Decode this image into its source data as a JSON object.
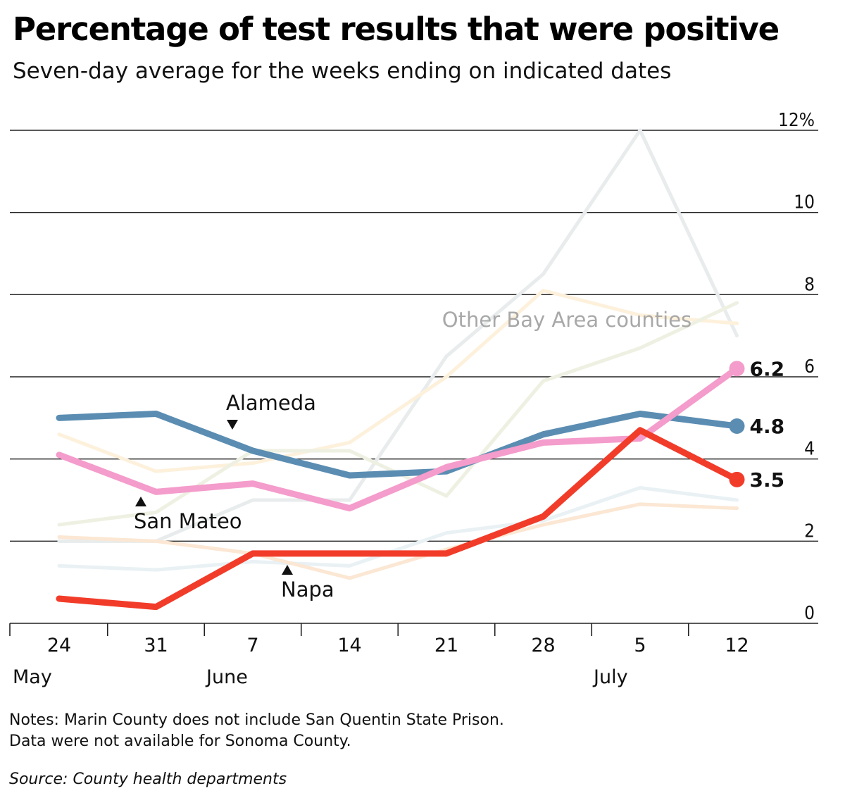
{
  "title": "Percentage of test results that were positive",
  "subtitle": "Seven-day average for the weeks ending on indicated dates",
  "notes": [
    "Notes: Marin County does not include San Quentin State Prison.",
    "Data were not available for Sonoma County."
  ],
  "source": "Source: County health departments",
  "chart_data": {
    "type": "line",
    "x": [
      "May 24",
      "May 31",
      "June 7",
      "June 14",
      "June 21",
      "June 28",
      "July 5",
      "July 12"
    ],
    "x_tick_labels": [
      "24",
      "31",
      "7",
      "14",
      "21",
      "28",
      "5",
      "12"
    ],
    "month_labels": [
      {
        "label": "May",
        "at": "May 24"
      },
      {
        "label": "June",
        "at": "June 7"
      },
      {
        "label": "July",
        "at": "July 5"
      }
    ],
    "ylim": [
      0,
      12
    ],
    "y_ticks": [
      0,
      2,
      4,
      6,
      8,
      10,
      12
    ],
    "y_tick_labels": [
      "0",
      "2",
      "4",
      "6",
      "8",
      "10",
      "12%"
    ],
    "grid": "horizontal",
    "background_series_label": "Other Bay Area counties",
    "background_series": [
      {
        "color": "#e8ecec",
        "values": [
          2.0,
          2.0,
          3.0,
          3.0,
          6.5,
          8.5,
          12.0,
          7.0
        ]
      },
      {
        "color": "#fdf1dc",
        "values": [
          4.6,
          3.7,
          3.9,
          4.4,
          6.0,
          8.1,
          7.5,
          7.3
        ]
      },
      {
        "color": "#eef0e2",
        "values": [
          2.4,
          2.7,
          4.2,
          4.2,
          3.1,
          5.9,
          6.7,
          7.8
        ]
      },
      {
        "color": "#e9f1f4",
        "values": [
          1.4,
          1.3,
          1.5,
          1.4,
          2.2,
          2.5,
          3.3,
          3.0
        ]
      },
      {
        "color": "#fbe7d3",
        "values": [
          2.1,
          2.0,
          1.7,
          1.1,
          1.8,
          2.4,
          2.9,
          2.8
        ]
      }
    ],
    "series": [
      {
        "name": "Alameda",
        "color": "#5b8db2",
        "values": [
          5.0,
          5.1,
          4.2,
          3.6,
          3.7,
          4.6,
          5.1,
          4.8
        ],
        "end_label": "4.8"
      },
      {
        "name": "San Mateo",
        "color": "#f49ccb",
        "values": [
          4.1,
          3.2,
          3.4,
          2.8,
          3.8,
          4.4,
          4.5,
          6.2
        ],
        "end_label": "6.2"
      },
      {
        "name": "Napa",
        "color": "#f23c2a",
        "values": [
          0.6,
          0.4,
          1.7,
          1.7,
          1.7,
          2.6,
          4.7,
          3.5
        ],
        "end_label": "3.5"
      }
    ],
    "annotations": [
      {
        "text": "Alameda",
        "series": "Alameda",
        "arrow": "down"
      },
      {
        "text": "San Mateo",
        "series": "San Mateo",
        "arrow": "up"
      },
      {
        "text": "Napa",
        "series": "Napa",
        "arrow": "up"
      }
    ]
  }
}
